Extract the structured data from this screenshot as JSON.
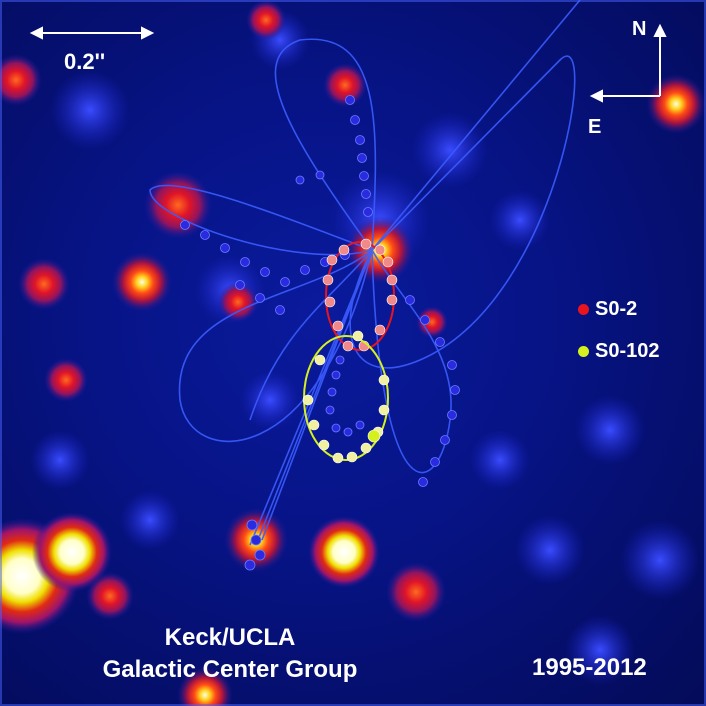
{
  "scale": {
    "label": "0.2''"
  },
  "compass": {
    "north": "N",
    "east": "E"
  },
  "legend": [
    {
      "label": "S0-2",
      "color": "#e8141e"
    },
    {
      "label": "S0-102",
      "color": "#d6f01e"
    }
  ],
  "credit": {
    "line1": "Keck/UCLA",
    "line2": "Galactic Center Group"
  },
  "years": "1995-2012",
  "colors": {
    "background": "#071487",
    "orbit_line": "#3a5cff",
    "orbit_point": "#2a2ae0",
    "s02_orbit": "#e8141e",
    "s0102_orbit": "#d6f01e"
  }
}
